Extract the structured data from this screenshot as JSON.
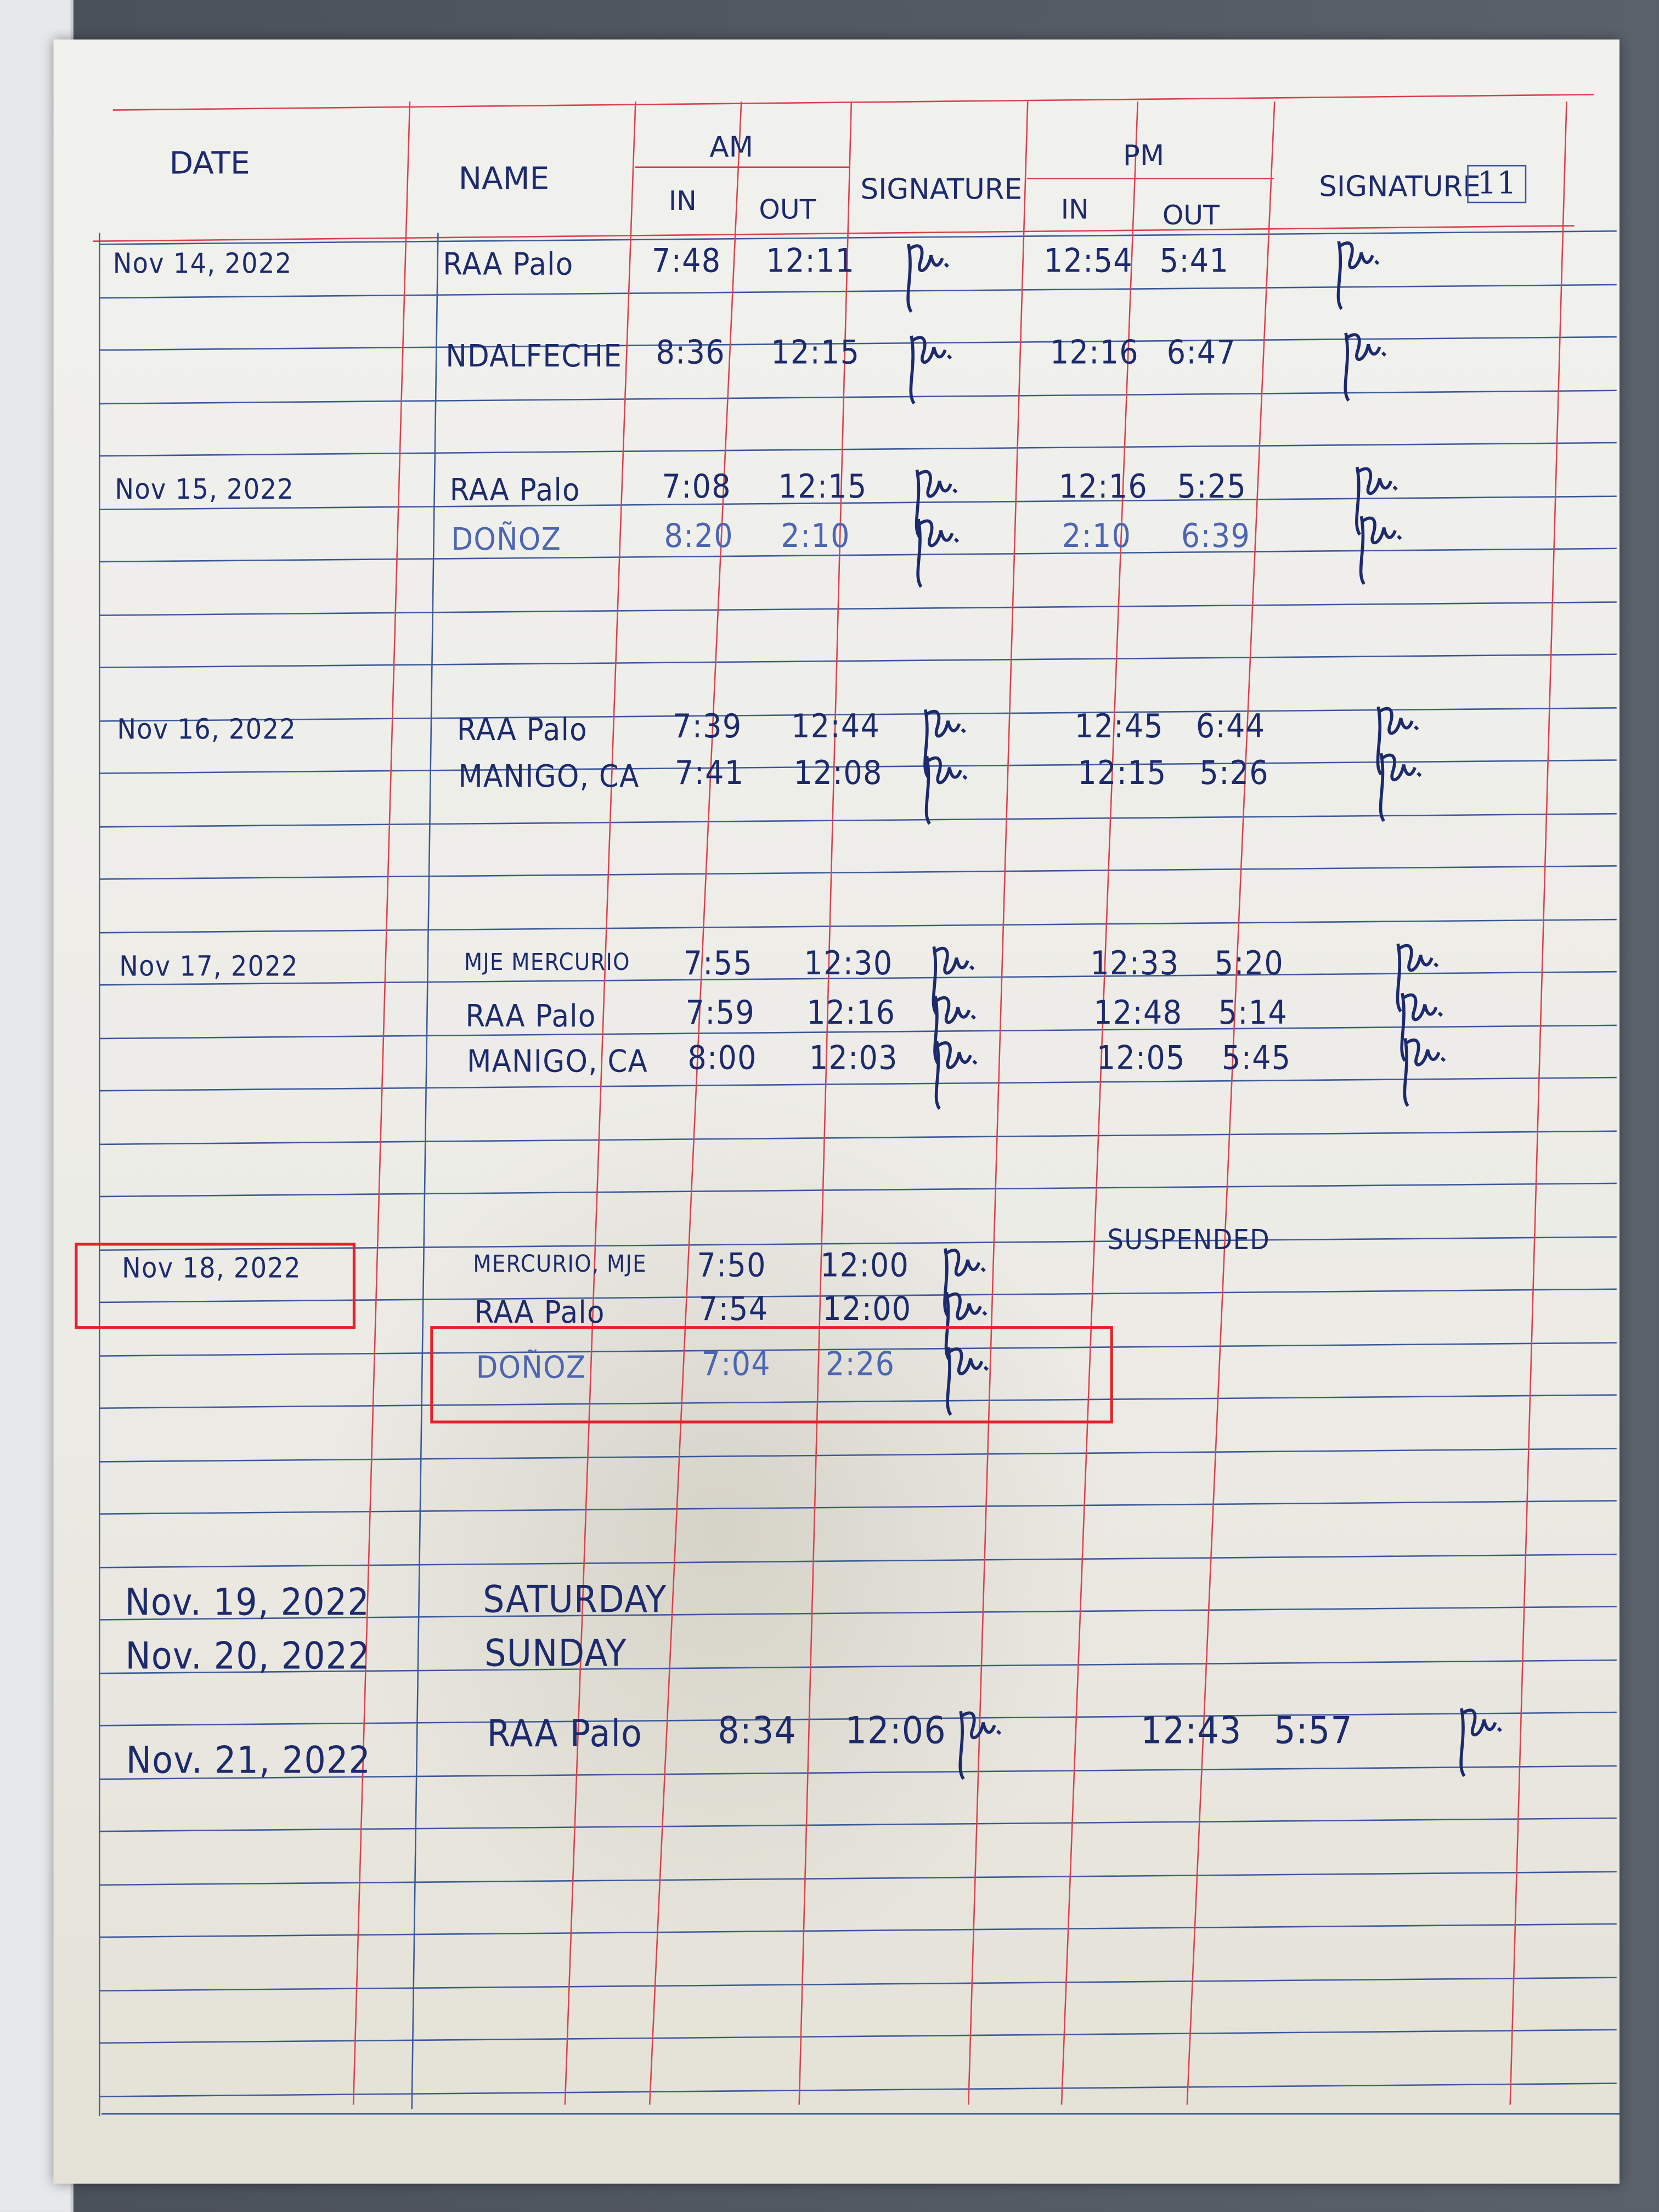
{
  "header": {
    "date": "DATE",
    "name": "NAME",
    "am": "AM",
    "pm": "PM",
    "in": "IN",
    "out": "OUT",
    "signature": "SIGNATURE",
    "page_number": "11"
  },
  "rows": [
    {
      "date": "Nov 14, 2022",
      "name": "RAA Palo",
      "am_in": "7:48",
      "am_out": "12:11",
      "am_signed": true,
      "pm_in": "12:54",
      "pm_out": "5:41",
      "pm_signed": true
    },
    {
      "date": "",
      "name": "NDALFECHE",
      "am_in": "8:36",
      "am_out": "12:15",
      "am_signed": true,
      "pm_in": "12:16",
      "pm_out": "6:47",
      "pm_signed": true
    },
    {
      "date": "Nov 15, 2022",
      "name": "RAA Palo",
      "am_in": "7:08",
      "am_out": "12:15",
      "am_signed": true,
      "pm_in": "12:16",
      "pm_out": "5:25",
      "pm_signed": true
    },
    {
      "date": "",
      "name": "DOÑOZ",
      "am_in": "8:20",
      "am_out": "2:10",
      "am_signed": true,
      "pm_in": "2:10",
      "pm_out": "6:39",
      "pm_signed": true,
      "light": true
    },
    {
      "date": "Nov 16, 2022",
      "name": "RAA Palo",
      "am_in": "7:39",
      "am_out": "12:44",
      "am_signed": true,
      "pm_in": "12:45",
      "pm_out": "6:44",
      "pm_signed": true
    },
    {
      "date": "",
      "name": "MANIGO, CA",
      "am_in": "7:41",
      "am_out": "12:08",
      "am_signed": true,
      "pm_in": "12:15",
      "pm_out": "5:26",
      "pm_signed": true
    },
    {
      "date": "Nov 17, 2022",
      "name": "MJE MERCURIO",
      "am_in": "7:55",
      "am_out": "12:30",
      "am_signed": true,
      "pm_in": "12:33",
      "pm_out": "5:20",
      "pm_signed": true
    },
    {
      "date": "",
      "name": "RAA Palo",
      "am_in": "7:59",
      "am_out": "12:16",
      "am_signed": true,
      "pm_in": "12:48",
      "pm_out": "5:14",
      "pm_signed": true
    },
    {
      "date": "",
      "name": "MANIGO, CA",
      "am_in": "8:00",
      "am_out": "12:03",
      "am_signed": true,
      "pm_in": "12:05",
      "pm_out": "5:45",
      "pm_signed": true
    },
    {
      "date": "Nov 18, 2022",
      "name": "MERCURIO, MJE",
      "am_in": "7:50",
      "am_out": "12:00",
      "am_signed": true,
      "pm_note": "SUSPENDED"
    },
    {
      "date": "",
      "name": "RAA Palo",
      "am_in": "7:54",
      "am_out": "12:00",
      "am_signed": true
    },
    {
      "date": "",
      "name": "DOÑOZ",
      "am_in": "7:04",
      "am_out": "2:26",
      "am_signed": true,
      "light": true
    },
    {
      "date": "Nov. 19, 2022",
      "name": "SATURDAY"
    },
    {
      "date": "Nov. 20, 2022",
      "name": "SUNDAY"
    },
    {
      "date": "Nov. 21, 2022",
      "name": "RAA Palo",
      "am_in": "8:34",
      "am_out": "12:06",
      "am_signed": true,
      "pm_in": "12:43",
      "pm_out": "5:57",
      "pm_signed": true
    }
  ],
  "annotations": {
    "highlight_color": "#e8202a",
    "highlighted": [
      "Nov 18, 2022 date cell",
      "DOÑOZ 7:04 2:26 row"
    ]
  },
  "colors": {
    "ink": "#1d2a6b",
    "rule_blue": "#3d5a9a",
    "rule_red": "#e0404c"
  }
}
